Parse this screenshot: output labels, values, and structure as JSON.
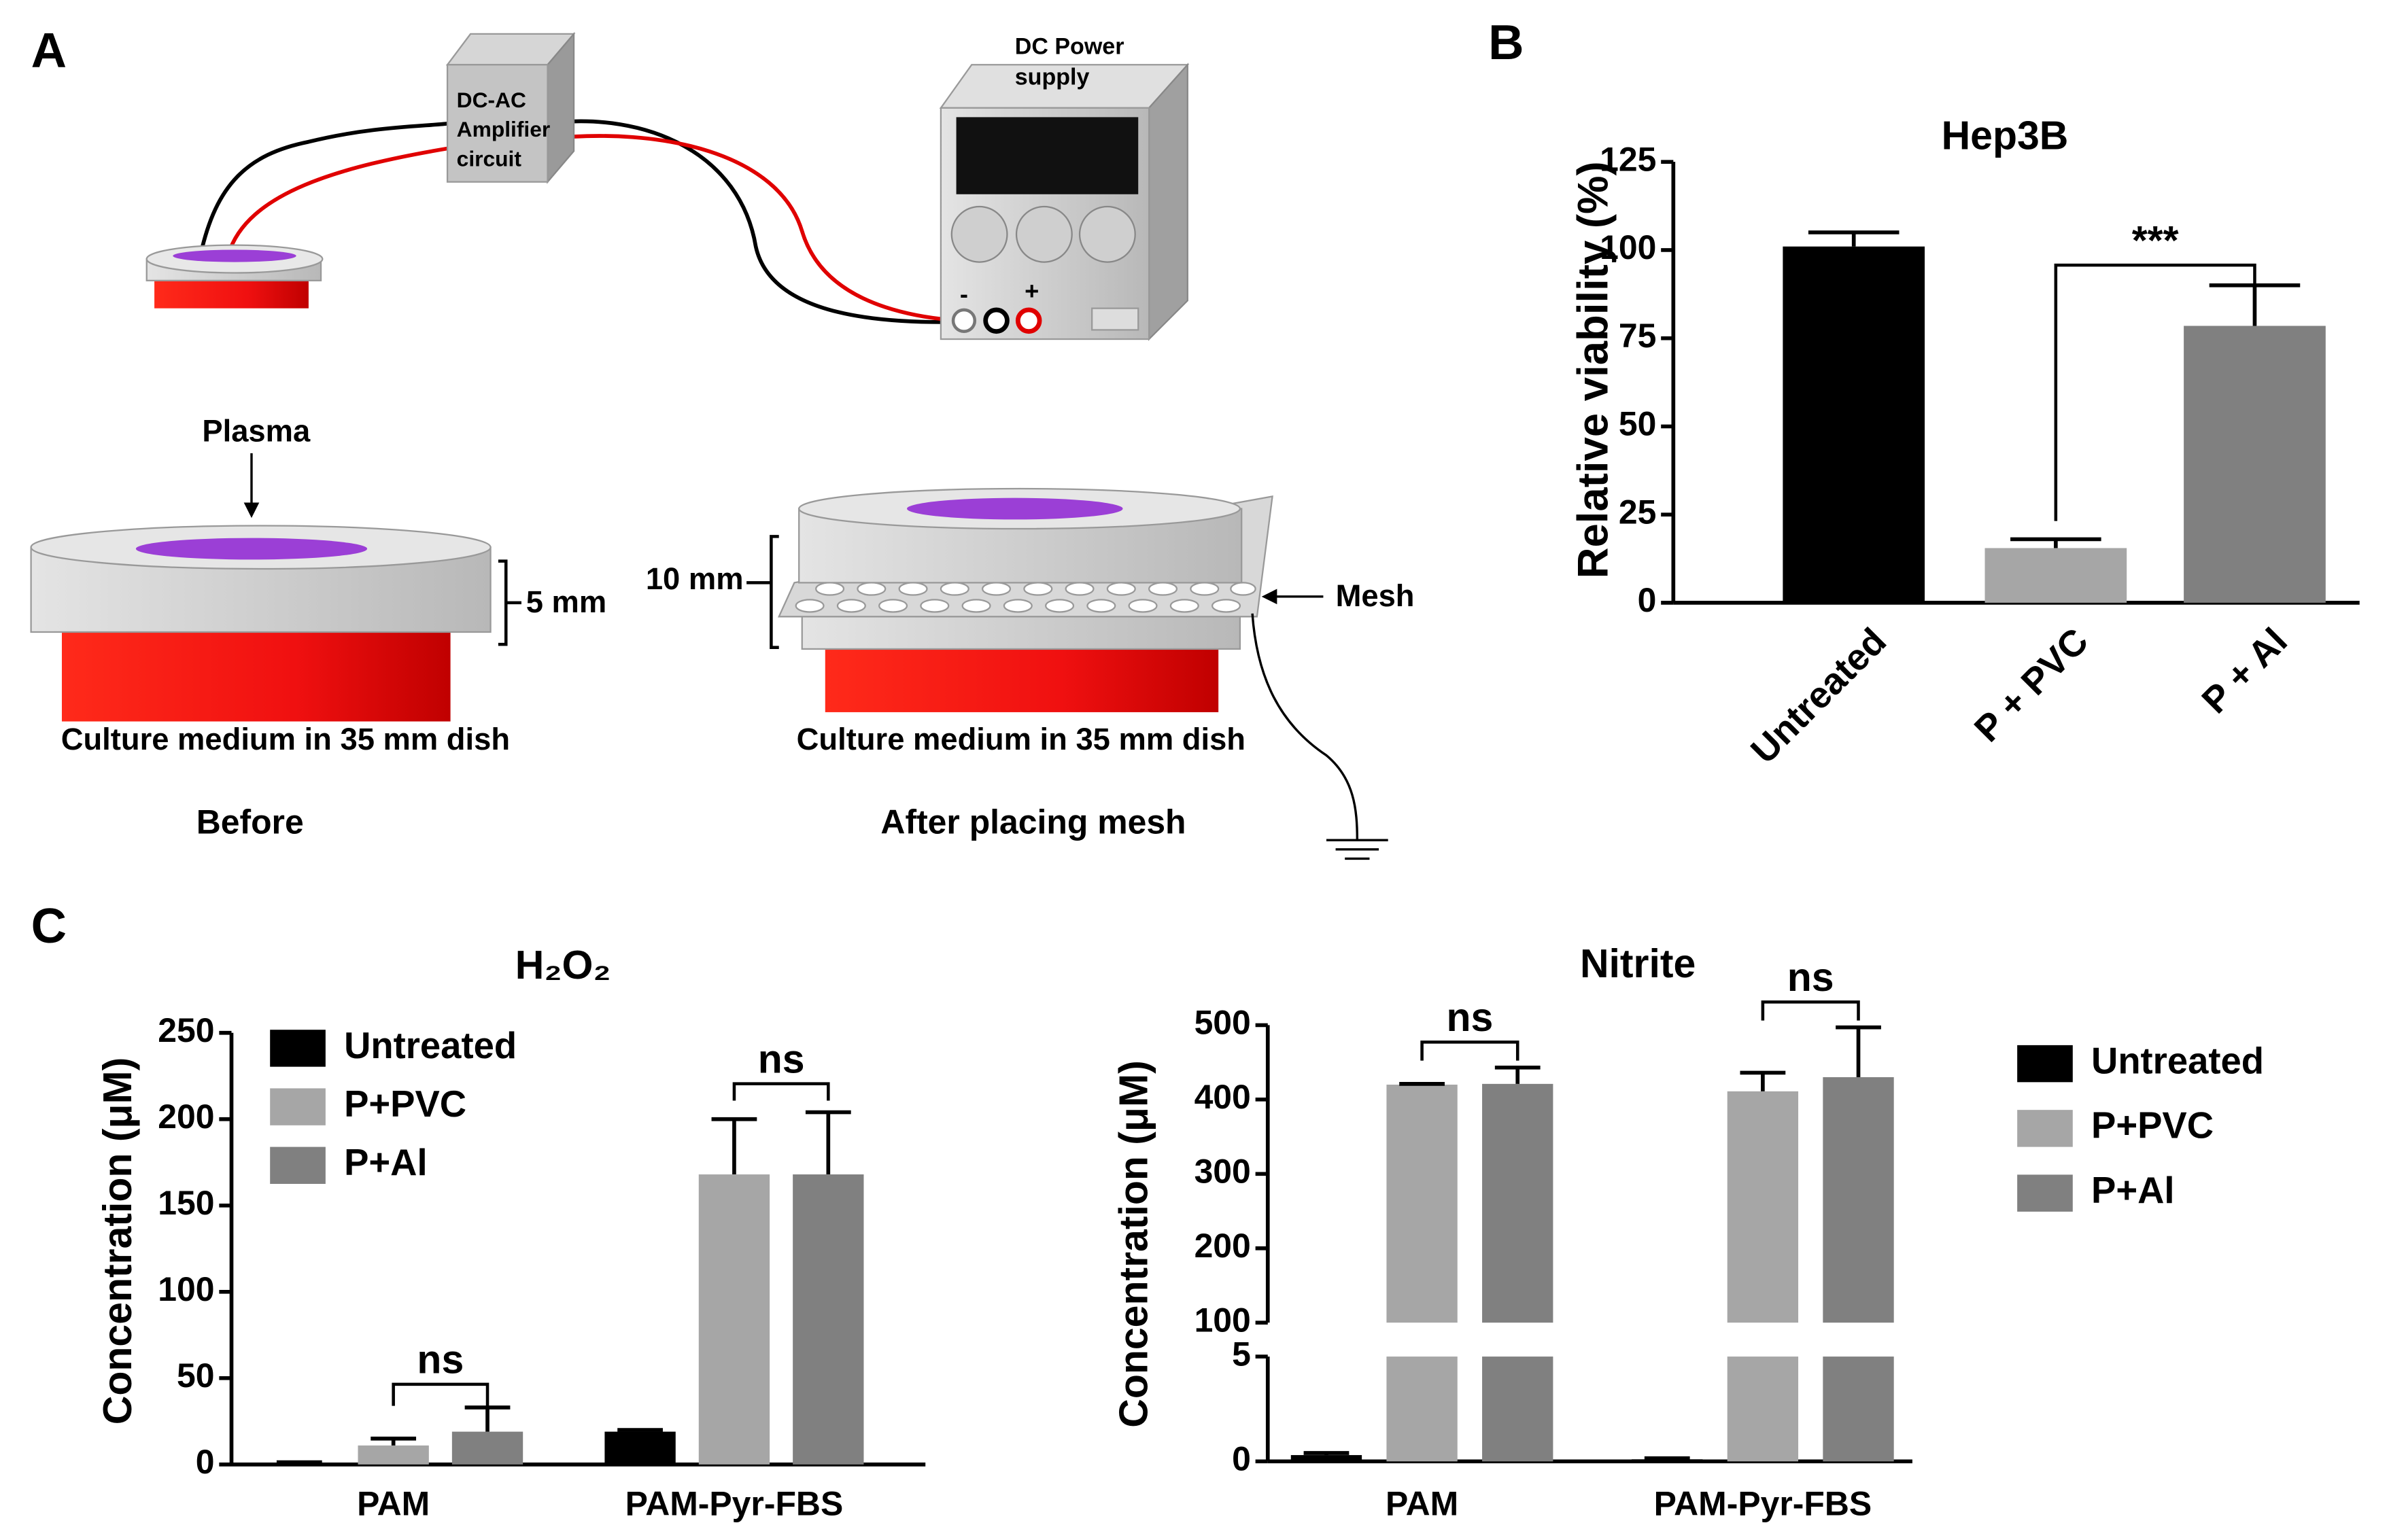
{
  "panel_labels": [
    "A",
    "B",
    "C"
  ],
  "diagram": {
    "amplifier": [
      "DC-AC",
      "Amplifier",
      "circuit"
    ],
    "power_supply": [
      "DC Power",
      "supply"
    ],
    "terminals": [
      "-",
      "+"
    ],
    "plasma": "Plasma",
    "gap_before": "5 mm",
    "gap_after": "10 mm",
    "mesh": "Mesh",
    "dish_before": "Culture medium in 35 mm dish",
    "dish_after": "Culture medium in 35 mm dish",
    "caption_before": "Before",
    "caption_after": "After placing mesh"
  },
  "chart_data": [
    {
      "type": "bar",
      "title": "Hep3B",
      "ylabel": "Relative viability (%)",
      "categories": [
        "Untreated",
        "P + PVC",
        "P + Al"
      ],
      "values": [
        101,
        15.5,
        78.5
      ],
      "errors": [
        4,
        2.5,
        11.5
      ],
      "colors": [
        "#000000",
        "#a6a6a6",
        "#808080"
      ],
      "ylim": [
        0,
        125
      ],
      "yticks": [
        0,
        25,
        50,
        75,
        100,
        125
      ],
      "annotations": [
        "***"
      ]
    },
    {
      "type": "grouped_bar",
      "title": "H₂O₂",
      "ylabel": "Concentration (μM)",
      "categories": [
        "PAM",
        "PAM-Pyr-FBS"
      ],
      "series": [
        {
          "name": "Untreated",
          "color": "#000000",
          "values": [
            1,
            19
          ],
          "errors": [
            0.3,
            1
          ]
        },
        {
          "name": "P+PVC",
          "color": "#a6a6a6",
          "values": [
            11,
            168
          ],
          "errors": [
            4,
            32
          ]
        },
        {
          "name": "P+Al",
          "color": "#808080",
          "values": [
            19,
            168
          ],
          "errors": [
            14,
            36
          ]
        }
      ],
      "ylim": [
        0,
        250
      ],
      "yticks": [
        0,
        50,
        100,
        150,
        200,
        250
      ],
      "annotations": [
        "ns",
        "ns"
      ]
    },
    {
      "type": "grouped_bar",
      "title": "Nitrite",
      "ylabel": "Concentration (μM)",
      "categories": [
        "PAM",
        "PAM-Pyr-FBS"
      ],
      "series": [
        {
          "name": "Untreated",
          "color": "#000000",
          "values": [
            0.3,
            0.1
          ],
          "errors": [
            0.1,
            0.05
          ]
        },
        {
          "name": "P+PVC",
          "color": "#a6a6a6",
          "values": [
            420,
            411
          ],
          "errors": [
            1,
            25
          ]
        },
        {
          "name": "P+Al",
          "color": "#808080",
          "values": [
            421,
            430
          ],
          "errors": [
            22,
            67
          ]
        }
      ],
      "axis_segments": [
        {
          "ylim": [
            0,
            5
          ],
          "yticks": [
            0,
            5
          ]
        },
        {
          "ylim": [
            100,
            500
          ],
          "yticks": [
            100,
            200,
            300,
            400,
            500
          ]
        }
      ],
      "annotations": [
        "ns",
        "ns"
      ]
    }
  ]
}
